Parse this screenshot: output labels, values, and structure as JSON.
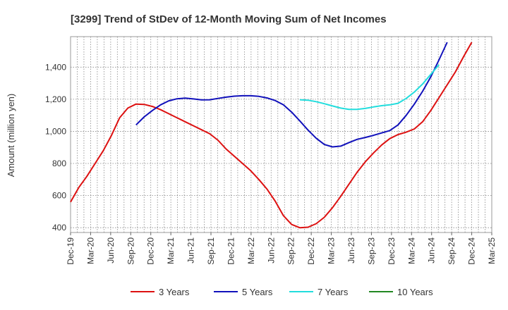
{
  "chart_data": {
    "type": "line",
    "title": "[3299]  Trend of StDev of 12-Month Moving Sum of Net Incomes",
    "ylabel": "Amount (million yen)",
    "xlabel": "",
    "ylim": [
      370,
      1590
    ],
    "yticks": [
      400,
      600,
      800,
      1000,
      1200,
      1400
    ],
    "ytick_labels": [
      "400",
      "600",
      "800",
      "1,000",
      "1,200",
      "1,400"
    ],
    "xtick_labels": [
      "Dec-19",
      "Mar-20",
      "Jun-20",
      "Sep-20",
      "Dec-20",
      "Mar-21",
      "Jun-21",
      "Sep-21",
      "Dec-21",
      "Mar-22",
      "Jun-22",
      "Sep-22",
      "Dec-22",
      "Mar-23",
      "Jun-23",
      "Sep-23",
      "Dec-23",
      "Mar-24",
      "Jun-24",
      "Sep-24",
      "Dec-24",
      "Mar-25"
    ],
    "grid": true,
    "legend_position": "bottom",
    "series": [
      {
        "name": "3 Years",
        "color": "#dd1111",
        "points": [
          [
            0,
            560
          ],
          [
            1,
            650
          ],
          [
            2,
            720
          ],
          [
            3,
            800
          ],
          [
            4,
            880
          ],
          [
            5,
            975
          ],
          [
            6,
            1085
          ],
          [
            7,
            1145
          ],
          [
            8,
            1170
          ],
          [
            9,
            1168
          ],
          [
            10,
            1155
          ],
          [
            11,
            1135
          ],
          [
            12,
            1110
          ],
          [
            13,
            1085
          ],
          [
            14,
            1060
          ],
          [
            15,
            1035
          ],
          [
            16,
            1010
          ],
          [
            17,
            985
          ],
          [
            18,
            945
          ],
          [
            19,
            890
          ],
          [
            20,
            845
          ],
          [
            21,
            800
          ],
          [
            22,
            755
          ],
          [
            23,
            700
          ],
          [
            24,
            640
          ],
          [
            25,
            565
          ],
          [
            26,
            475
          ],
          [
            27,
            420
          ],
          [
            28,
            400
          ],
          [
            29,
            403
          ],
          [
            30,
            425
          ],
          [
            31,
            465
          ],
          [
            32,
            525
          ],
          [
            33,
            595
          ],
          [
            34,
            670
          ],
          [
            35,
            745
          ],
          [
            36,
            810
          ],
          [
            37,
            865
          ],
          [
            38,
            915
          ],
          [
            39,
            955
          ],
          [
            40,
            980
          ],
          [
            41,
            995
          ],
          [
            42,
            1015
          ],
          [
            43,
            1060
          ],
          [
            44,
            1130
          ],
          [
            45,
            1210
          ],
          [
            46,
            1290
          ],
          [
            47,
            1370
          ],
          [
            48,
            1465
          ],
          [
            49,
            1555
          ]
        ]
      },
      {
        "name": "5 Years",
        "color": "#1111bb",
        "points": [
          [
            8,
            1040
          ],
          [
            9,
            1090
          ],
          [
            10,
            1130
          ],
          [
            11,
            1165
          ],
          [
            12,
            1190
          ],
          [
            13,
            1203
          ],
          [
            14,
            1207
          ],
          [
            15,
            1202
          ],
          [
            16,
            1196
          ],
          [
            17,
            1197
          ],
          [
            18,
            1205
          ],
          [
            19,
            1213
          ],
          [
            20,
            1219
          ],
          [
            21,
            1222
          ],
          [
            22,
            1222
          ],
          [
            23,
            1218
          ],
          [
            24,
            1208
          ],
          [
            25,
            1192
          ],
          [
            26,
            1165
          ],
          [
            27,
            1120
          ],
          [
            28,
            1065
          ],
          [
            29,
            1008
          ],
          [
            30,
            957
          ],
          [
            31,
            918
          ],
          [
            32,
            903
          ],
          [
            33,
            908
          ],
          [
            34,
            930
          ],
          [
            35,
            950
          ],
          [
            36,
            962
          ],
          [
            37,
            975
          ],
          [
            38,
            990
          ],
          [
            39,
            1005
          ],
          [
            40,
            1040
          ],
          [
            41,
            1100
          ],
          [
            42,
            1170
          ],
          [
            43,
            1250
          ],
          [
            44,
            1340
          ],
          [
            45,
            1445
          ],
          [
            46,
            1555
          ]
        ]
      },
      {
        "name": "7 Years",
        "color": "#22dddd",
        "points": [
          [
            28,
            1197
          ],
          [
            29,
            1194
          ],
          [
            30,
            1185
          ],
          [
            31,
            1172
          ],
          [
            32,
            1158
          ],
          [
            33,
            1145
          ],
          [
            34,
            1137
          ],
          [
            35,
            1137
          ],
          [
            36,
            1143
          ],
          [
            37,
            1152
          ],
          [
            38,
            1160
          ],
          [
            39,
            1165
          ],
          [
            40,
            1175
          ],
          [
            41,
            1205
          ],
          [
            42,
            1245
          ],
          [
            43,
            1295
          ],
          [
            44,
            1355
          ],
          [
            45,
            1415
          ]
        ]
      },
      {
        "name": "10 Years",
        "color": "#228822",
        "points": []
      }
    ]
  }
}
